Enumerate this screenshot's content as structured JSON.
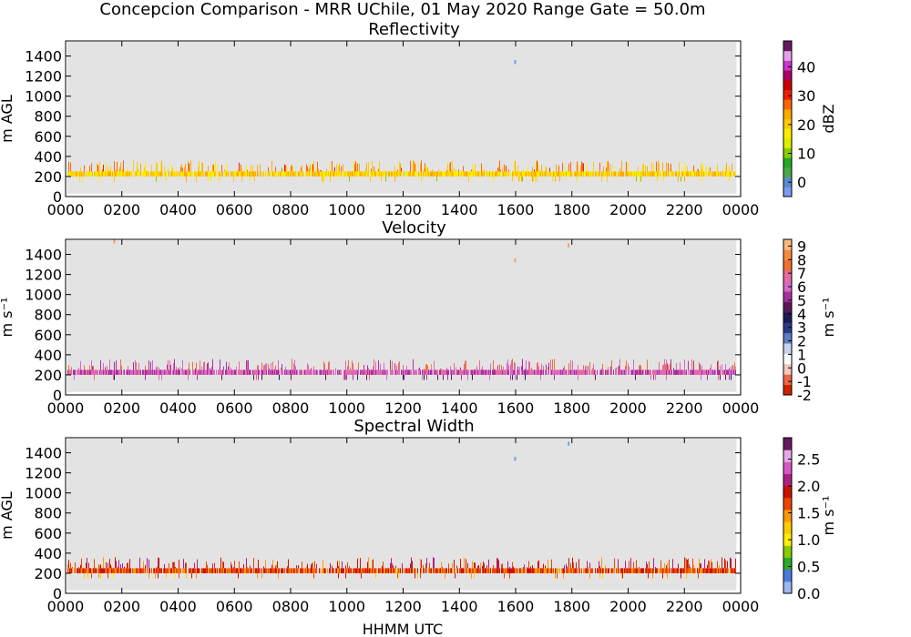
{
  "figure": {
    "title": "Concepcion Comparison - MRR UChile, 01 May 2020 Range Gate = 50.0m",
    "xlabel": "HHMM UTC"
  },
  "chart_data": [
    {
      "type": "heatmap",
      "title": "Reflectivity",
      "ylabel": "m AGL",
      "colorbar_label": "dBZ",
      "x_ticks": [
        "0000",
        "0200",
        "0400",
        "0600",
        "0800",
        "1000",
        "1200",
        "1400",
        "1600",
        "1800",
        "2000",
        "2200",
        "0000"
      ],
      "xlim_hours": [
        0,
        24
      ],
      "y_ticks": [
        0,
        200,
        400,
        600,
        800,
        1000,
        1200,
        1400
      ],
      "ylim": [
        0,
        1550
      ],
      "clim": [
        -5,
        49
      ],
      "colorbar_ticks": [
        0,
        10,
        20,
        30,
        40
      ],
      "colorbar_ticklabels": [
        "0",
        "10",
        "20",
        "30",
        "40"
      ],
      "colormap": [
        "#7a9cf2",
        "#5a8ad2",
        "#4aa84a",
        "#22aa22",
        "#88cc00",
        "#ddee00",
        "#ffee00",
        "#ffcc00",
        "#ffaa00",
        "#ff6600",
        "#ee2200",
        "#cc0000",
        "#aa0066",
        "#cc33cc",
        "#e6a0e6",
        "#6a1860"
      ],
      "background": "#e3e3e3",
      "echo_layer": {
        "base_m": 150,
        "main_m": [
          200,
          250
        ],
        "top_m": 380,
        "typical_value": 20
      },
      "isolated_echoes": [
        {
          "hour": 15.95,
          "height_m": 1320
        }
      ]
    },
    {
      "type": "heatmap",
      "title": "Velocity",
      "ylabel": "m s⁻¹",
      "colorbar_label": "m s⁻¹",
      "x_ticks": [
        "0000",
        "0200",
        "0400",
        "0600",
        "0800",
        "1000",
        "1200",
        "1400",
        "1600",
        "1800",
        "2000",
        "2200",
        "0000"
      ],
      "xlim_hours": [
        0,
        24
      ],
      "y_ticks": [
        0,
        200,
        400,
        600,
        800,
        1000,
        1200,
        1400
      ],
      "ylim": [
        0,
        1550
      ],
      "clim": [
        -2,
        9.5
      ],
      "colorbar_ticks": [
        -2,
        -1,
        0,
        1,
        2,
        3,
        4,
        5,
        6,
        7,
        8,
        9
      ],
      "colorbar_ticklabels": [
        "-2",
        "-1",
        "0",
        "1",
        "2",
        "3",
        "4",
        "5",
        "6",
        "7",
        "8",
        "9"
      ],
      "colormap": [
        "#cc2200",
        "#ee6644",
        "#f6c8c0",
        "#ffffff",
        "#c8d4ec",
        "#5c7cc4",
        "#2a3a8a",
        "#1a1a5a",
        "#5a1858",
        "#a830a0",
        "#d868c8",
        "#e86a9a",
        "#f07030",
        "#f88a40",
        "#f8b880"
      ],
      "background": "#e3e3e3",
      "echo_layer": {
        "base_m": 150,
        "main_m": [
          200,
          250
        ],
        "top_m": 380,
        "typical_value": 6
      },
      "isolated_echoes": [
        {
          "hour": 15.95,
          "height_m": 1320
        },
        {
          "hour": 1.7,
          "height_m": 1510
        },
        {
          "hour": 17.85,
          "height_m": 1470
        }
      ]
    },
    {
      "type": "heatmap",
      "title": "Spectral Width",
      "ylabel": "m AGL",
      "colorbar_label": "m s⁻¹",
      "x_ticks": [
        "0000",
        "0200",
        "0400",
        "0600",
        "0800",
        "1000",
        "1200",
        "1400",
        "1600",
        "1800",
        "2000",
        "2200",
        "0000"
      ],
      "xlim_hours": [
        0,
        24
      ],
      "y_ticks": [
        0,
        200,
        400,
        600,
        800,
        1000,
        1200,
        1400
      ],
      "ylim": [
        0,
        1550
      ],
      "clim": [
        0,
        2.9
      ],
      "colorbar_ticks": [
        0.0,
        0.5,
        1.0,
        1.5,
        2.0,
        2.5
      ],
      "colorbar_ticklabels": [
        "0.0",
        "0.5",
        "1.0",
        "1.5",
        "2.0",
        "2.5"
      ],
      "colormap": [
        "#9cb8f0",
        "#4a7ae0",
        "#2aaa2a",
        "#88cc00",
        "#ffee00",
        "#ffcc00",
        "#ff9900",
        "#ee4400",
        "#cc1100",
        "#b02080",
        "#d858c8",
        "#e8a8e8",
        "#6a1860"
      ],
      "background": "#e3e3e3",
      "echo_layer": {
        "base_m": 150,
        "main_m": [
          200,
          250
        ],
        "top_m": 380,
        "typical_value": 1.7
      },
      "isolated_echoes": [
        {
          "hour": 15.95,
          "height_m": 1320
        },
        {
          "hour": 17.85,
          "height_m": 1470
        }
      ]
    }
  ]
}
